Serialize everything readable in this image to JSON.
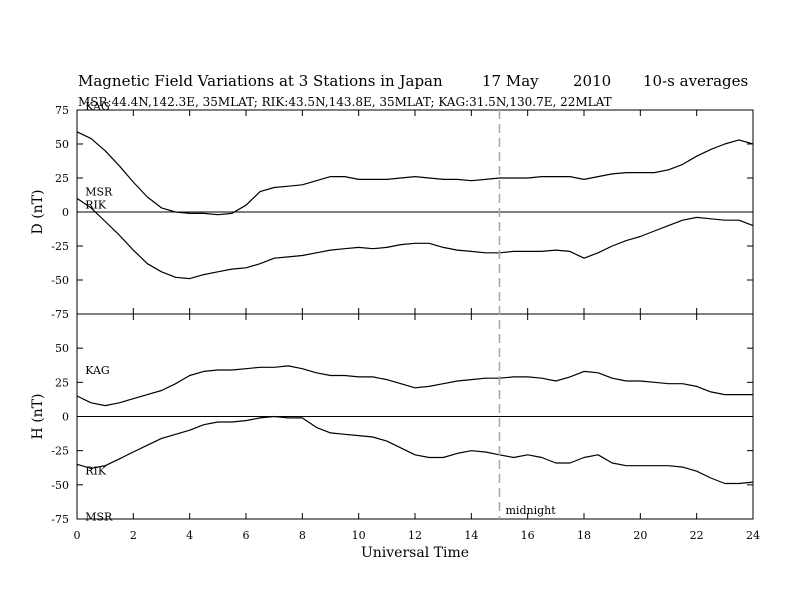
{
  "header": {
    "title": "Magnetic Field Variations at 3 Stations in Japan",
    "date_day": "17 May",
    "date_year": "2010",
    "averaging": "10-s averages",
    "stations": "MSR:44.4N,142.3E, 35MLAT;  RIK:43.5N,143.8E, 35MLAT;  KAG:31.5N,130.7E, 22MLAT"
  },
  "chart_data": {
    "type": "line",
    "xlabel": "Universal Time",
    "xlim": [
      0,
      24
    ],
    "x_ticks": [
      0,
      2,
      4,
      6,
      8,
      10,
      12,
      14,
      16,
      18,
      20,
      22,
      24
    ],
    "x_tick_labels": [
      "0",
      "2",
      "4",
      "6",
      "8",
      "10",
      "12",
      "14",
      "16",
      "18",
      "20",
      "22",
      "24"
    ],
    "marker": {
      "x": 15,
      "label": "midnight",
      "style": "dashed",
      "color": "#aaaaaa"
    },
    "panels": [
      {
        "id": "D",
        "ylabel": "D (nT)",
        "ylim": [
          -75,
          75
        ],
        "y_ticks": [
          75,
          50,
          25,
          0,
          -25,
          -50,
          -75
        ],
        "y_tick_labels": [
          "75",
          "50",
          "25",
          "0",
          "-25",
          "-50",
          "-75"
        ],
        "zero_line": true,
        "series": [
          {
            "name": "KAG",
            "x": [
              0,
              0.5,
              1,
              1.5,
              2,
              2.5,
              3,
              3.5,
              4,
              4.5,
              5,
              5.5,
              6,
              6.5,
              7,
              7.5,
              8,
              8.5,
              9,
              9.5,
              10,
              10.5,
              11,
              11.5,
              12,
              12.5,
              13,
              13.5,
              14,
              14.5,
              15,
              15.5,
              16,
              16.5,
              17,
              17.5,
              18,
              18.5,
              19,
              19.5,
              20,
              20.5,
              21,
              21.5,
              22,
              22.5,
              23,
              23.5,
              24
            ],
            "y": [
              59,
              54,
              45,
              34,
              22,
              11,
              3,
              0,
              -1,
              -1,
              -2,
              -1,
              5,
              15,
              18,
              19,
              20,
              23,
              26,
              26,
              24,
              24,
              24,
              25,
              26,
              25,
              24,
              24,
              23,
              24,
              25,
              25,
              25,
              26,
              26,
              26,
              24,
              26,
              28,
              29,
              29,
              29,
              31,
              35,
              41,
              46,
              50,
              53,
              50
            ]
          },
          {
            "name": "MSR",
            "x": [
              0,
              0.5,
              1,
              1.5,
              2,
              2.5,
              3,
              3.5,
              4,
              4.5,
              5,
              5.5,
              6,
              6.5,
              7,
              7.5,
              8,
              8.5,
              9,
              9.5,
              10,
              10.5,
              11,
              11.5,
              12,
              12.5,
              13,
              13.5,
              14,
              14.5,
              15,
              15.5,
              16,
              16.5,
              17,
              17.5,
              18,
              18.5,
              19,
              19.5,
              20,
              20.5,
              21,
              21.5,
              22,
              22.5,
              23,
              23.5,
              24
            ],
            "y": [
              10,
              3,
              -7,
              -17,
              -28,
              -38,
              -44,
              -48,
              -49,
              -46,
              -44,
              -42,
              -41,
              -38,
              -34,
              -33,
              -32,
              -30,
              -28,
              -27,
              -26,
              -27,
              -26,
              -24,
              -23,
              -23,
              -26,
              -28,
              -29,
              -30,
              -30,
              -29,
              -29,
              -29,
              -28,
              -29,
              -34,
              -30,
              -25,
              -21,
              -18,
              -14,
              -10,
              -6,
              -4,
              -5,
              -6,
              -6,
              -10
            ]
          }
        ],
        "labels": [
          {
            "text": "KAG",
            "series": "KAG"
          },
          {
            "text": "MSR",
            "series": "MSR"
          },
          {
            "text": "RIK",
            "series": "MSR"
          }
        ]
      },
      {
        "id": "H",
        "ylabel": "H (nT)",
        "ylim": [
          -75,
          75
        ],
        "y_ticks": [
          75,
          50,
          25,
          0,
          -25,
          -50,
          -75
        ],
        "y_tick_labels": [
          "75",
          "50",
          "25",
          "0",
          "-25",
          "-50",
          "-75"
        ],
        "zero_line": true,
        "series": [
          {
            "name": "KAG",
            "x": [
              0,
              0.5,
              1,
              1.5,
              2,
              2.5,
              3,
              3.5,
              4,
              4.5,
              5,
              5.5,
              6,
              6.5,
              7,
              7.5,
              8,
              8.5,
              9,
              9.5,
              10,
              10.5,
              11,
              11.5,
              12,
              12.5,
              13,
              13.5,
              14,
              14.5,
              15,
              15.5,
              16,
              16.5,
              17,
              17.5,
              18,
              18.5,
              19,
              19.5,
              20,
              20.5,
              21,
              21.5,
              22,
              22.5,
              23,
              23.5,
              24
            ],
            "y": [
              15,
              10,
              8,
              10,
              13,
              16,
              19,
              24,
              30,
              33,
              34,
              34,
              35,
              36,
              36,
              37,
              35,
              32,
              30,
              30,
              29,
              29,
              27,
              24,
              21,
              22,
              24,
              26,
              27,
              28,
              28,
              29,
              29,
              28,
              26,
              29,
              33,
              32,
              28,
              26,
              26,
              25,
              24,
              24,
              22,
              18,
              16,
              16,
              16
            ]
          },
          {
            "name": "MSR",
            "x": [
              0,
              0.5,
              1,
              1.5,
              2,
              2.5,
              3,
              3.5,
              4,
              4.5,
              5,
              5.5,
              6,
              6.5,
              7,
              7.5,
              8,
              8.5,
              9,
              9.5,
              10,
              10.5,
              11,
              11.5,
              12,
              12.5,
              13,
              13.5,
              14,
              14.5,
              15,
              15.5,
              16,
              16.5,
              17,
              17.5,
              18,
              18.5,
              19,
              19.5,
              20,
              20.5,
              21,
              21.5,
              22,
              22.5,
              23,
              23.5,
              24
            ],
            "y": [
              -35,
              -38,
              -36,
              -31,
              -26,
              -21,
              -16,
              -13,
              -10,
              -6,
              -4,
              -4,
              -3,
              -1,
              0,
              -1,
              -1,
              -8,
              -12,
              -13,
              -14,
              -15,
              -18,
              -23,
              -28,
              -30,
              -30,
              -27,
              -25,
              -26,
              -28,
              -30,
              -28,
              -30,
              -34,
              -34,
              -30,
              -28,
              -34,
              -36,
              -36,
              -36,
              -36,
              -37,
              -40,
              -45,
              -49,
              -49,
              -48
            ]
          }
        ],
        "labels": [
          {
            "text": "KAG",
            "series": "KAG"
          },
          {
            "text": "RIK",
            "series": "MSR"
          },
          {
            "text": "MSR",
            "series": "MSR"
          }
        ]
      }
    ]
  }
}
